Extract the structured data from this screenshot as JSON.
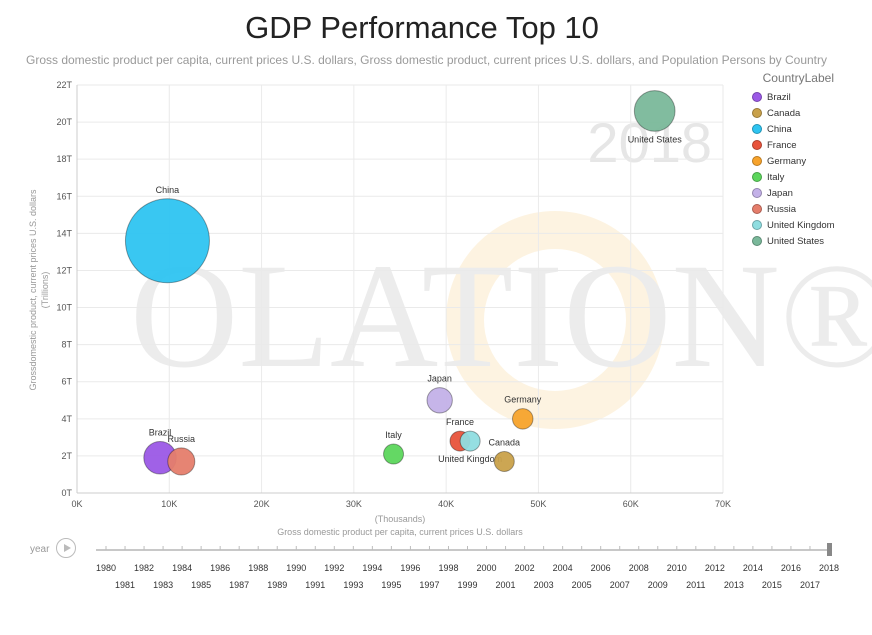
{
  "title": "GDP Performance Top 10",
  "subtitle": "Gross domestic product per capita, current prices U.S. dollars, Gross domestic product, current prices U.S. dollars, and Population Persons by Country",
  "watermark": {
    "year": "2018",
    "logo_text": "OLATION®"
  },
  "chart_data": {
    "type": "scatter",
    "title": "GDP Performance Top 10",
    "xlabel": "Gross domestic product per capita, current prices U.S. dollars",
    "xunit": "(Thousands)",
    "ylabel": "Grossdomestic product, current prices U.S. dollars",
    "yunit": "(Trillions)",
    "xlim": [
      0,
      70000
    ],
    "ylim": [
      0,
      22
    ],
    "x_ticks": [
      {
        "value": 0,
        "label": "0K"
      },
      {
        "value": 10000,
        "label": "10K"
      },
      {
        "value": 20000,
        "label": "20K"
      },
      {
        "value": 30000,
        "label": "30K"
      },
      {
        "value": 40000,
        "label": "40K"
      },
      {
        "value": 50000,
        "label": "50K"
      },
      {
        "value": 60000,
        "label": "60K"
      },
      {
        "value": 70000,
        "label": "70K"
      }
    ],
    "y_ticks": [
      {
        "value": 0,
        "label": "0T"
      },
      {
        "value": 2,
        "label": "2T"
      },
      {
        "value": 4,
        "label": "4T"
      },
      {
        "value": 6,
        "label": "6T"
      },
      {
        "value": 8,
        "label": "8T"
      },
      {
        "value": 10,
        "label": "10T"
      },
      {
        "value": 12,
        "label": "12T"
      },
      {
        "value": 14,
        "label": "14T"
      },
      {
        "value": 16,
        "label": "16T"
      },
      {
        "value": 18,
        "label": "18T"
      },
      {
        "value": 20,
        "label": "20T"
      },
      {
        "value": 22,
        "label": "22T"
      }
    ],
    "grid": true,
    "legend_title": "CountryLabel",
    "legend_position": "right",
    "size_variable": "Population Persons",
    "series": [
      {
        "name": "Brazil",
        "color": "#9b59e6",
        "x": 9000,
        "y": 1.9,
        "population": 209
      },
      {
        "name": "Canada",
        "color": "#c9a14a",
        "x": 46300,
        "y": 1.7,
        "population": 37
      },
      {
        "name": "China",
        "color": "#2ec4f1",
        "x": 9800,
        "y": 13.6,
        "population": 1395
      },
      {
        "name": "France",
        "color": "#e8533b",
        "x": 41500,
        "y": 2.8,
        "population": 67
      },
      {
        "name": "Germany",
        "color": "#f7a32c",
        "x": 48300,
        "y": 4.0,
        "population": 83
      },
      {
        "name": "Italy",
        "color": "#5cd65c",
        "x": 34300,
        "y": 2.1,
        "population": 60
      },
      {
        "name": "Japan",
        "color": "#c3b1e8",
        "x": 39300,
        "y": 5.0,
        "population": 127
      },
      {
        "name": "Russia",
        "color": "#e57d6b",
        "x": 11300,
        "y": 1.7,
        "population": 145
      },
      {
        "name": "United Kingdom",
        "color": "#8fdde0",
        "x": 42600,
        "y": 2.8,
        "population": 66
      },
      {
        "name": "United States",
        "color": "#7ab89a",
        "x": 62600,
        "y": 20.6,
        "population": 327
      }
    ],
    "point_labels": [
      "Brazil",
      "Canada",
      "China",
      "France",
      "Germany",
      "Italy",
      "Japan",
      "Russia",
      "United Kingdom",
      "United States"
    ]
  },
  "play_axis": {
    "label": "year",
    "current": 2018,
    "years_top": [
      "1980",
      "1982",
      "1984",
      "1986",
      "1988",
      "1990",
      "1992",
      "1994",
      "1996",
      "1998",
      "2000",
      "2002",
      "2004",
      "2006",
      "2008",
      "2010",
      "2012",
      "2014",
      "2016",
      "2018"
    ],
    "years_bottom": [
      "1981",
      "1983",
      "1985",
      "1987",
      "1989",
      "1991",
      "1993",
      "1995",
      "1997",
      "1999",
      "2001",
      "2003",
      "2005",
      "2007",
      "2009",
      "2011",
      "2013",
      "2015",
      "2017"
    ]
  }
}
